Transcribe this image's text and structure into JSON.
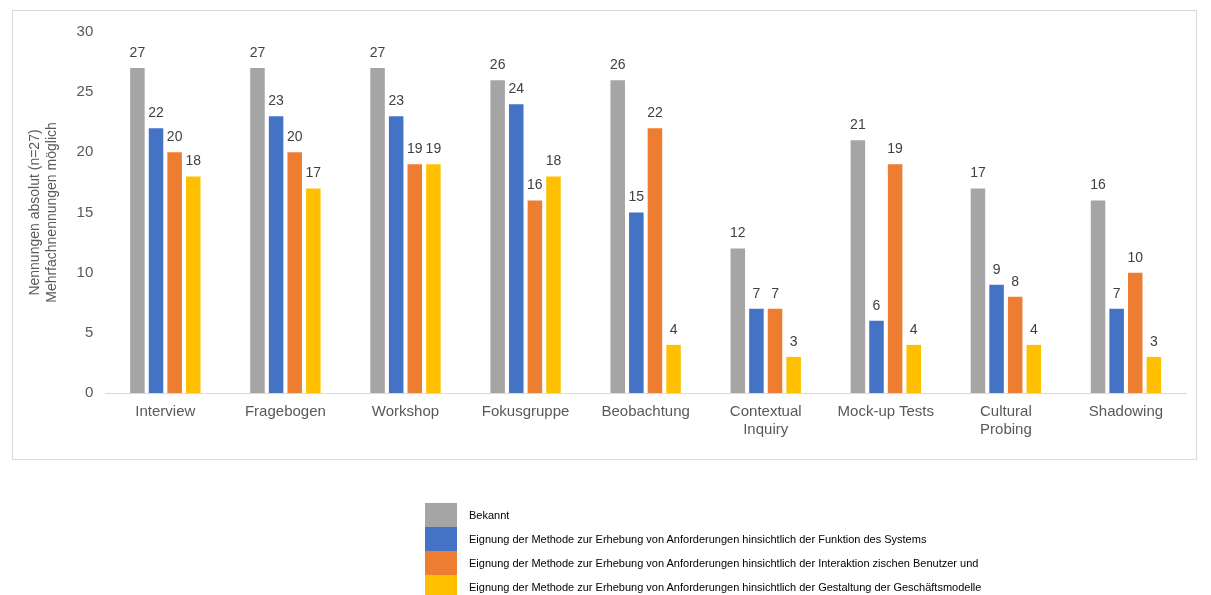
{
  "chart_data": {
    "type": "bar",
    "ylabel": "Nennungen absolut (n=27)\nMehrfachnennungen möglich",
    "categories": [
      "Interview",
      "Fragebogen",
      "Workshop",
      "Fokusgruppe",
      "Beobachtung",
      "Contextual Inquiry",
      "Mock-up Tests",
      "Cultural Probing",
      "Shadowing"
    ],
    "series": [
      {
        "name": "Bekannt",
        "color": "#a5a5a5",
        "values": [
          27,
          27,
          27,
          26,
          26,
          12,
          21,
          17,
          16
        ]
      },
      {
        "name": "Eignung der Methode zur Erhebung von Anforderungen hinsichtlich der Funktion des Systems",
        "color": "#4472c4",
        "values": [
          22,
          23,
          23,
          24,
          15,
          7,
          6,
          9,
          7
        ]
      },
      {
        "name": "Eignung der Methode zur Erhebung von Anforderungen hinsichtlich der Interaktion zischen Benutzer und",
        "color": "#ed7d31",
        "values": [
          20,
          20,
          19,
          16,
          22,
          7,
          19,
          8,
          10
        ]
      },
      {
        "name": "Eignung der Methode zur Erhebung von Anforderungen hinsichtlich der Gestaltung der Geschäftsmodelle",
        "color": "#ffc000",
        "values": [
          18,
          17,
          19,
          18,
          4,
          3,
          4,
          4,
          3
        ]
      }
    ],
    "ylim": [
      0,
      30
    ],
    "yticks": [
      0,
      5,
      10,
      15,
      20,
      25,
      30
    ],
    "grid": false,
    "legend": "bottom",
    "data_labels": true
  }
}
